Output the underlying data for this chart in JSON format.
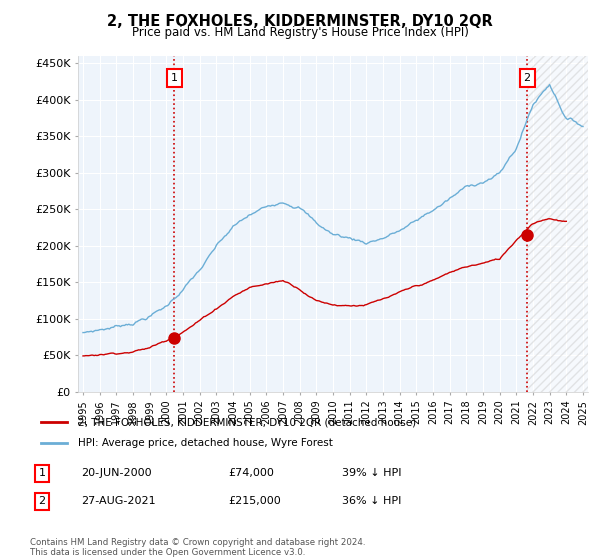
{
  "title": "2, THE FOXHOLES, KIDDERMINSTER, DY10 2QR",
  "subtitle": "Price paid vs. HM Land Registry's House Price Index (HPI)",
  "ylabel_ticks": [
    "£0",
    "£50K",
    "£100K",
    "£150K",
    "£200K",
    "£250K",
    "£300K",
    "£350K",
    "£400K",
    "£450K"
  ],
  "ylabel_values": [
    0,
    50000,
    100000,
    150000,
    200000,
    250000,
    300000,
    350000,
    400000,
    450000
  ],
  "ylim": [
    0,
    460000
  ],
  "xlim_start": 1994.7,
  "xlim_end": 2025.3,
  "x_ticks": [
    1995,
    1996,
    1997,
    1998,
    1999,
    2000,
    2001,
    2002,
    2003,
    2004,
    2005,
    2006,
    2007,
    2008,
    2009,
    2010,
    2011,
    2012,
    2013,
    2014,
    2015,
    2016,
    2017,
    2018,
    2019,
    2020,
    2021,
    2022,
    2023,
    2024,
    2025
  ],
  "hpi_color": "#6baed6",
  "price_color": "#cc0000",
  "vline_color": "#cc0000",
  "marker1_x": 2000.47,
  "marker1_y": 74000,
  "marker2_x": 2021.65,
  "marker2_y": 215000,
  "legend_label1": "2, THE FOXHOLES, KIDDERMINSTER, DY10 2QR (detached house)",
  "legend_label2": "HPI: Average price, detached house, Wyre Forest",
  "table_row1": [
    "1",
    "20-JUN-2000",
    "£74,000",
    "39% ↓ HPI"
  ],
  "table_row2": [
    "2",
    "27-AUG-2021",
    "£215,000",
    "36% ↓ HPI"
  ],
  "footnote": "Contains HM Land Registry data © Crown copyright and database right 2024.\nThis data is licensed under the Open Government Licence v3.0.",
  "bg_color": "#ffffff",
  "chart_bg_color": "#eef4fb",
  "grid_color": "#ffffff",
  "hpi_years": [
    1995,
    1996,
    1997,
    1998,
    1999,
    2000,
    2001,
    2002,
    2003,
    2004,
    2005,
    2006,
    2007,
    2008,
    2009,
    2010,
    2011,
    2012,
    2013,
    2014,
    2015,
    2016,
    2017,
    2018,
    2019,
    2020,
    2021,
    2022,
    2023,
    2024,
    2025
  ],
  "hpi_vals": [
    80000,
    85000,
    90000,
    97000,
    107000,
    120000,
    145000,
    170000,
    200000,
    225000,
    240000,
    250000,
    262000,
    258000,
    235000,
    220000,
    215000,
    210000,
    218000,
    228000,
    240000,
    255000,
    270000,
    285000,
    295000,
    305000,
    340000,
    400000,
    430000,
    385000,
    375000
  ],
  "price_years": [
    1995,
    1996,
    1997,
    1998,
    1999,
    2000,
    2001,
    2002,
    2003,
    2004,
    2005,
    2006,
    2007,
    2008,
    2009,
    2010,
    2011,
    2012,
    2013,
    2014,
    2015,
    2016,
    2017,
    2018,
    2019,
    2020,
    2021,
    2022,
    2023,
    2024
  ],
  "price_vals": [
    49000,
    52000,
    55000,
    58000,
    63000,
    74000,
    88000,
    103000,
    120000,
    138000,
    150000,
    155000,
    160000,
    150000,
    135000,
    130000,
    130000,
    132000,
    138000,
    145000,
    153000,
    160000,
    170000,
    178000,
    183000,
    188000,
    215000,
    240000,
    248000,
    243000
  ]
}
